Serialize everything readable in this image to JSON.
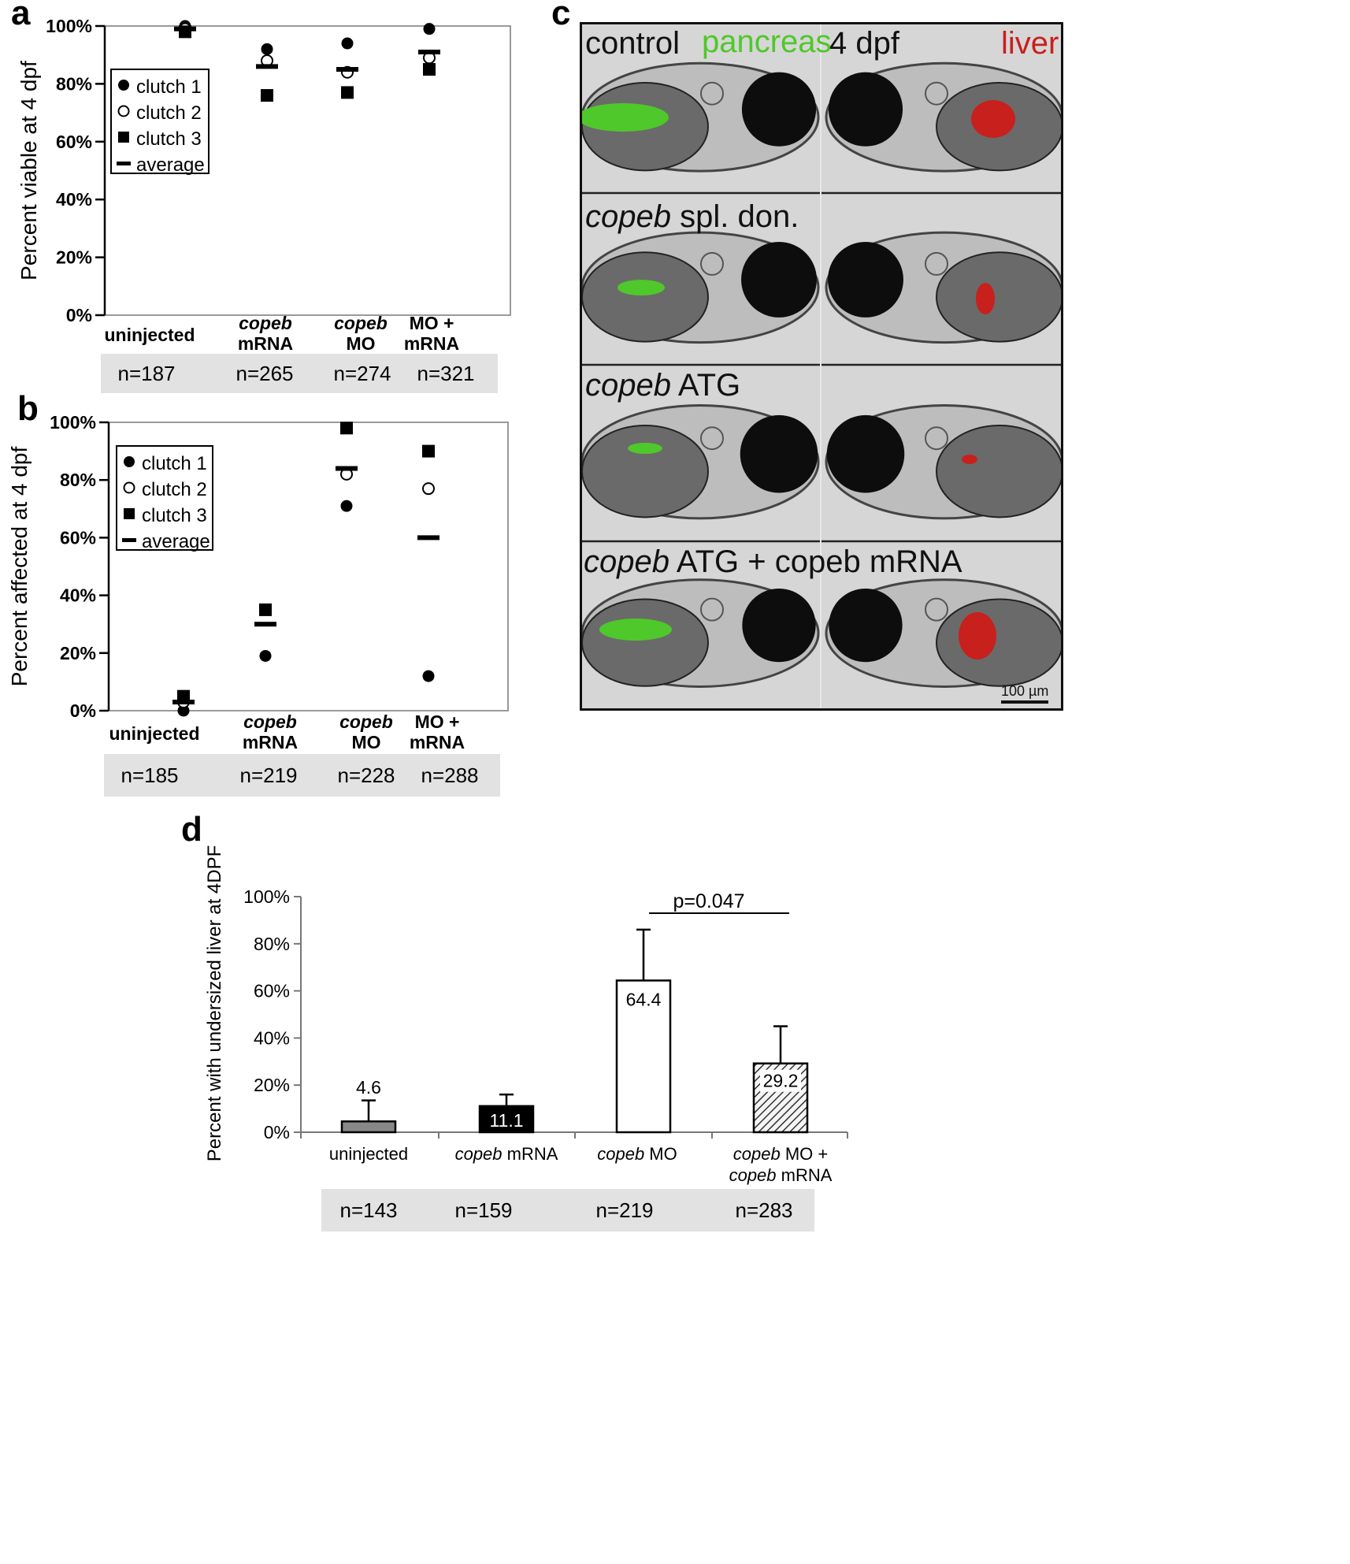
{
  "panels": {
    "a": {
      "letter": "a"
    },
    "b": {
      "letter": "b"
    },
    "c": {
      "letter": "c"
    },
    "d": {
      "letter": "d"
    }
  },
  "images": {
    "header": {
      "control": "control",
      "pancreas": "pancreas",
      "stage": "4 dpf",
      "liver": "liver"
    },
    "rows": [
      {
        "italic": "copeb",
        "rest": " spl. don."
      },
      {
        "italic": "copeb",
        "rest": " ATG"
      },
      {
        "italic": "copeb",
        "rest": " ATG + copeb mRNA"
      }
    ],
    "scale_bar": "100 µm",
    "colors": {
      "pancreas": "#4ec82a",
      "liver": "#c8201c",
      "stage": "#111111"
    }
  },
  "chart_data": [
    {
      "id": "a",
      "type": "scatter",
      "ylabel": "Percent viable at  4 dpf",
      "ylim": [
        0,
        100
      ],
      "yticks": [
        "0%",
        "20%",
        "40%",
        "60%",
        "80%",
        "100%"
      ],
      "categories": [
        {
          "lines": [
            {
              "text": "uninjected",
              "italic": false
            }
          ],
          "n": "n=187"
        },
        {
          "lines": [
            {
              "text": "copeb",
              "italic": true
            },
            {
              "text": "mRNA",
              "italic": false
            }
          ],
          "n": "n=265"
        },
        {
          "lines": [
            {
              "text": "copeb",
              "italic": true
            },
            {
              "text": "MO",
              "italic": false
            }
          ],
          "n": "n=274"
        },
        {
          "lines": [
            {
              "text": "MO +",
              "italic": false
            },
            {
              "text": "mRNA",
              "italic": false
            }
          ],
          "n": "n=321"
        }
      ],
      "series": [
        {
          "name": "clutch 1",
          "marker": "filled-circle",
          "values": [
            100,
            92,
            94,
            99
          ]
        },
        {
          "name": "clutch 2",
          "marker": "open-circle",
          "values": [
            99,
            88,
            84,
            89
          ]
        },
        {
          "name": "clutch 3",
          "marker": "filled-square",
          "values": [
            98,
            76,
            77,
            85
          ]
        },
        {
          "name": "average",
          "marker": "dash",
          "values": [
            99,
            86,
            85,
            91
          ]
        }
      ],
      "legend_position": "upper-left"
    },
    {
      "id": "b",
      "type": "scatter",
      "ylabel": "Percent affected at 4 dpf",
      "ylim": [
        0,
        100
      ],
      "yticks": [
        "0%",
        "20%",
        "40%",
        "60%",
        "80%",
        "100%"
      ],
      "categories": [
        {
          "lines": [
            {
              "text": "uninjected",
              "italic": false
            }
          ],
          "n": "n=185"
        },
        {
          "lines": [
            {
              "text": "copeb",
              "italic": true
            },
            {
              "text": "mRNA",
              "italic": false
            }
          ],
          "n": "n=219"
        },
        {
          "lines": [
            {
              "text": "copeb",
              "italic": true
            },
            {
              "text": "MO",
              "italic": false
            }
          ],
          "n": "n=228"
        },
        {
          "lines": [
            {
              "text": "MO +",
              "italic": false
            },
            {
              "text": "mRNA",
              "italic": false
            }
          ],
          "n": "n=288"
        }
      ],
      "series": [
        {
          "name": "clutch 1",
          "marker": "filled-circle",
          "values": [
            0,
            19,
            71,
            12
          ]
        },
        {
          "name": "clutch 2",
          "marker": "open-circle",
          "values": [
            3,
            null,
            82,
            77
          ]
        },
        {
          "name": "clutch 3",
          "marker": "filled-square",
          "values": [
            5,
            35,
            98,
            90
          ]
        },
        {
          "name": "average",
          "marker": "dash",
          "values": [
            3,
            30,
            84,
            60
          ]
        }
      ],
      "legend_position": "upper-left"
    },
    {
      "id": "d",
      "type": "bar",
      "ylabel": "Percent with undersized liver at 4DPF",
      "ylim": [
        0,
        100
      ],
      "yticks": [
        "0%",
        "20%",
        "40%",
        "60%",
        "80%",
        "100%"
      ],
      "categories": [
        {
          "lines": [
            [
              {
                "text": "uninjected",
                "italic": false
              }
            ]
          ],
          "n": "n=143"
        },
        {
          "lines": [
            [
              {
                "text": "copeb",
                "italic": true
              },
              {
                "text": " mRNA",
                "italic": false
              }
            ]
          ],
          "n": "n=159"
        },
        {
          "lines": [
            [
              {
                "text": "copeb",
                "italic": true
              },
              {
                "text": " MO",
                "italic": false
              }
            ]
          ],
          "n": "n=219"
        },
        {
          "lines": [
            [
              {
                "text": "copeb",
                "italic": true
              },
              {
                "text": " MO +",
                "italic": false
              }
            ],
            [
              {
                "text": "copeb",
                "italic": true
              },
              {
                "text": " mRNA",
                "italic": false
              }
            ]
          ],
          "n": "n=283"
        }
      ],
      "values": [
        4.6,
        11.1,
        64.4,
        29.2
      ],
      "value_labels": [
        "4.6",
        "11.1",
        "64.4",
        "29.2"
      ],
      "error_upper": [
        13.5,
        16,
        86,
        45
      ],
      "bar_styles": [
        "gray",
        "black",
        "white",
        "hatched"
      ],
      "significance": {
        "between": [
          2,
          3
        ],
        "label": "p=0.047"
      }
    }
  ]
}
